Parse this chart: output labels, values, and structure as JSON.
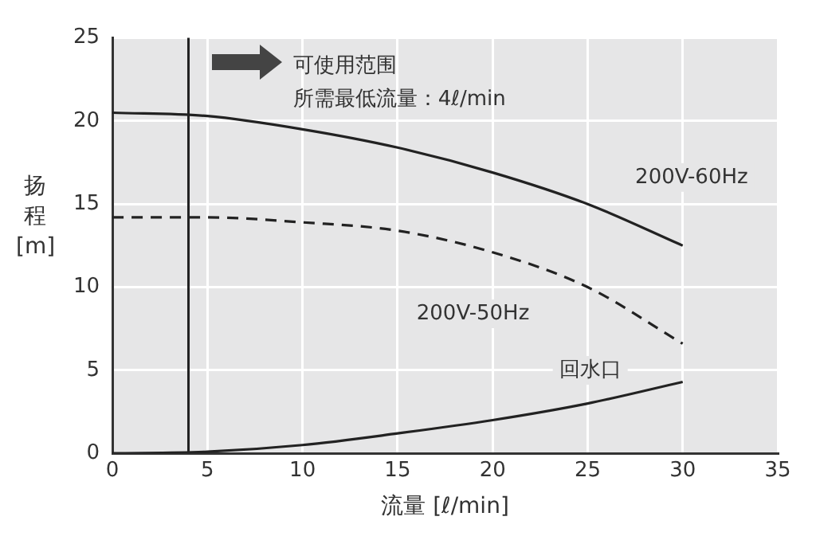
{
  "chart_data": {
    "type": "line",
    "xlabel": "流量 [ℓ/min]",
    "ylabel": "扬程[m]",
    "x": [
      0,
      5,
      10,
      15,
      20,
      25,
      30
    ],
    "series": [
      {
        "name": "200V-60Hz",
        "color": "#222222",
        "line_style": "solid",
        "values": [
          20.5,
          20.3,
          19.5,
          18.4,
          16.9,
          15,
          12.5
        ]
      },
      {
        "name": "200V-50Hz",
        "color": "#222222",
        "line_style": "dashed",
        "values": [
          14.2,
          14.2,
          13.9,
          13.4,
          12.1,
          10,
          6.6
        ]
      },
      {
        "name": "回水口",
        "color": "#222222",
        "line_style": "solid",
        "values": [
          0,
          0.1,
          0.5,
          1.2,
          2,
          3,
          4.3
        ]
      }
    ],
    "xlim": [
      0,
      35
    ],
    "xticks": [
      0,
      5,
      10,
      15,
      20,
      25,
      30,
      35
    ],
    "ylim": [
      0,
      25
    ],
    "yticks": [
      0,
      5,
      10,
      15,
      20,
      25
    ],
    "ref_lines": [
      {
        "axis": "x",
        "value": 4,
        "color": "#222222"
      }
    ],
    "annotations": [
      "可使用范围",
      "所需最低流量：4ℓ/min"
    ],
    "grid": true,
    "legend": false,
    "marker": "none"
  }
}
